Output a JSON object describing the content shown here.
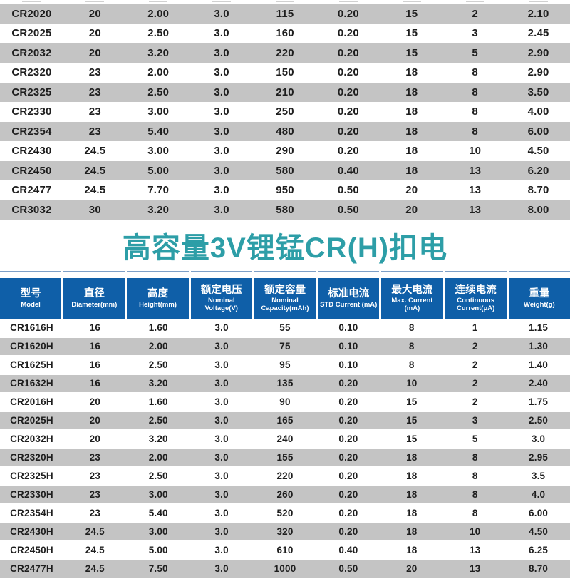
{
  "title": {
    "text": "高容量3V锂锰CR(H)扣电",
    "color": "#2d9ea7"
  },
  "colors": {
    "header_blue": "#0f5fa8",
    "row_gray": "#c4c4c4",
    "row_white": "#ffffff",
    "title_teal": "#2d9ea7",
    "text_dark": "#1e1e1e"
  },
  "standard_table": {
    "rows": [
      [
        "CR2020",
        "20",
        "2.00",
        "3.0",
        "115",
        "0.20",
        "15",
        "2",
        "2.10"
      ],
      [
        "CR2025",
        "20",
        "2.50",
        "3.0",
        "160",
        "0.20",
        "15",
        "3",
        "2.45"
      ],
      [
        "CR2032",
        "20",
        "3.20",
        "3.0",
        "220",
        "0.20",
        "15",
        "5",
        "2.90"
      ],
      [
        "CR2320",
        "23",
        "2.00",
        "3.0",
        "150",
        "0.20",
        "18",
        "8",
        "2.90"
      ],
      [
        "CR2325",
        "23",
        "2.50",
        "3.0",
        "210",
        "0.20",
        "18",
        "8",
        "3.50"
      ],
      [
        "CR2330",
        "23",
        "3.00",
        "3.0",
        "250",
        "0.20",
        "18",
        "8",
        "4.00"
      ],
      [
        "CR2354",
        "23",
        "5.40",
        "3.0",
        "480",
        "0.20",
        "18",
        "8",
        "6.00"
      ],
      [
        "CR2430",
        "24.5",
        "3.00",
        "3.0",
        "290",
        "0.20",
        "18",
        "10",
        "4.50"
      ],
      [
        "CR2450",
        "24.5",
        "5.00",
        "3.0",
        "580",
        "0.40",
        "18",
        "13",
        "6.20"
      ],
      [
        "CR2477",
        "24.5",
        "7.70",
        "3.0",
        "950",
        "0.50",
        "20",
        "13",
        "8.70"
      ],
      [
        "CR3032",
        "30",
        "3.20",
        "3.0",
        "580",
        "0.50",
        "20",
        "13",
        "8.00"
      ]
    ]
  },
  "high_capacity_table": {
    "header": [
      {
        "zh": "型号",
        "en": "Model"
      },
      {
        "zh": "直径",
        "en": "Diameter(mm)"
      },
      {
        "zh": "高度",
        "en": "Height(mm)"
      },
      {
        "zh": "额定电压",
        "en": "Nominal Voltage(V)"
      },
      {
        "zh": "额定容量",
        "en": "Nominal Capacity(mAh)"
      },
      {
        "zh": "标准电流",
        "en": "STD Current (mA)"
      },
      {
        "zh": "最大电流",
        "en": "Max. Current (mA)"
      },
      {
        "zh": "连续电流",
        "en": "Continuous Current(μA)"
      },
      {
        "zh": "重量",
        "en": "Weight(g)"
      }
    ],
    "rows": [
      [
        "CR1616H",
        "16",
        "1.60",
        "3.0",
        "55",
        "0.10",
        "8",
        "1",
        "1.15"
      ],
      [
        "CR1620H",
        "16",
        "2.00",
        "3.0",
        "75",
        "0.10",
        "8",
        "2",
        "1.30"
      ],
      [
        "CR1625H",
        "16",
        "2.50",
        "3.0",
        "95",
        "0.10",
        "8",
        "2",
        "1.40"
      ],
      [
        "CR1632H",
        "16",
        "3.20",
        "3.0",
        "135",
        "0.20",
        "10",
        "2",
        "2.40"
      ],
      [
        "CR2016H",
        "20",
        "1.60",
        "3.0",
        "90",
        "0.20",
        "15",
        "2",
        "1.75"
      ],
      [
        "CR2025H",
        "20",
        "2.50",
        "3.0",
        "165",
        "0.20",
        "15",
        "3",
        "2.50"
      ],
      [
        "CR2032H",
        "20",
        "3.20",
        "3.0",
        "240",
        "0.20",
        "15",
        "5",
        "3.0"
      ],
      [
        "CR2320H",
        "23",
        "2.00",
        "3.0",
        "155",
        "0.20",
        "18",
        "8",
        "2.95"
      ],
      [
        "CR2325H",
        "23",
        "2.50",
        "3.0",
        "220",
        "0.20",
        "18",
        "8",
        "3.5"
      ],
      [
        "CR2330H",
        "23",
        "3.00",
        "3.0",
        "260",
        "0.20",
        "18",
        "8",
        "4.0"
      ],
      [
        "CR2354H",
        "23",
        "5.40",
        "3.0",
        "520",
        "0.20",
        "18",
        "8",
        "6.00"
      ],
      [
        "CR2430H",
        "24.5",
        "3.00",
        "3.0",
        "320",
        "0.20",
        "18",
        "10",
        "4.50"
      ],
      [
        "CR2450H",
        "24.5",
        "5.00",
        "3.0",
        "610",
        "0.40",
        "18",
        "13",
        "6.25"
      ],
      [
        "CR2477H",
        "24.5",
        "7.50",
        "3.0",
        "1000",
        "0.50",
        "20",
        "13",
        "8.70"
      ]
    ]
  }
}
